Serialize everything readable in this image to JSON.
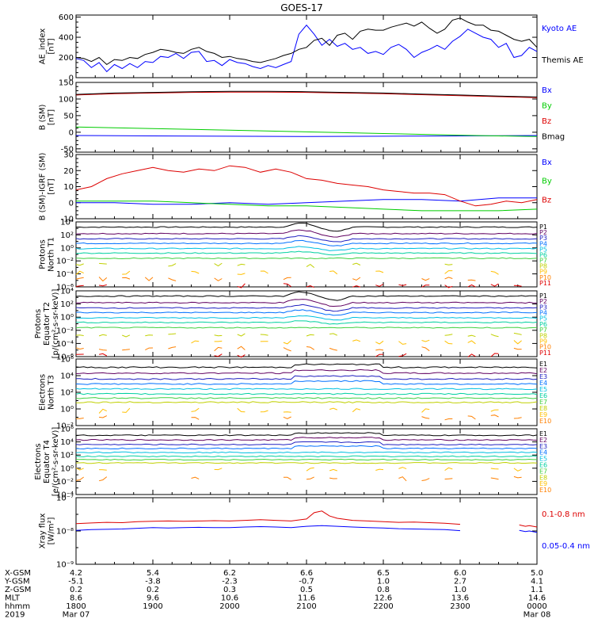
{
  "figure_title": "GOES-17",
  "colors": {
    "black": "#000000",
    "blue": "#0000ff",
    "green": "#00cc00",
    "red": "#dd0000",
    "darkred": "#8b0000",
    "ladder": [
      "#000000",
      "#600060",
      "#2020c0",
      "#0070ff",
      "#00c0e0",
      "#00d0a0",
      "#40d040",
      "#c0d000",
      "#ffc000",
      "#ff8000",
      "#e00000"
    ]
  },
  "chart_data": [
    {
      "id": "ae",
      "type": "line",
      "ylabel": "AE_index\n[nT]",
      "ylim": [
        0,
        620
      ],
      "yscale": "linear",
      "yticks": [
        0,
        200,
        400,
        600
      ],
      "ytick_labels": [
        "0",
        "200",
        "400",
        "600"
      ],
      "legend": [
        "Kyoto AE",
        "Themis AE"
      ],
      "legend_colors": [
        "#0000ff",
        "#000000"
      ],
      "series": [
        {
          "name": "Kyoto AE",
          "color": "#0000ff",
          "x": [
            0,
            0.1,
            0.2,
            0.3,
            0.4,
            0.5,
            0.6,
            0.7,
            0.8,
            0.9,
            1.0,
            1.1,
            1.2,
            1.3,
            1.4,
            1.5,
            1.6,
            1.7,
            1.8,
            1.9,
            2.0,
            2.1,
            2.2,
            2.3,
            2.4,
            2.5,
            2.6,
            2.7,
            2.8,
            2.9,
            3.0,
            3.1,
            3.2,
            3.3,
            3.4,
            3.5,
            3.6,
            3.7,
            3.8,
            3.9,
            4.0,
            4.1,
            4.2,
            4.3,
            4.4,
            4.5,
            4.6,
            4.7,
            4.8,
            4.9,
            5.0,
            5.1,
            5.2,
            5.3,
            5.4,
            5.5,
            5.6,
            5.7,
            5.8,
            5.9,
            6.0
          ],
          "y": [
            190,
            170,
            100,
            150,
            60,
            130,
            90,
            140,
            100,
            160,
            150,
            210,
            200,
            240,
            190,
            250,
            260,
            160,
            170,
            120,
            180,
            150,
            140,
            110,
            90,
            120,
            100,
            130,
            160,
            430,
            520,
            430,
            320,
            380,
            310,
            340,
            280,
            300,
            240,
            260,
            230,
            300,
            330,
            280,
            200,
            250,
            280,
            320,
            280,
            360,
            410,
            480,
            440,
            400,
            380,
            300,
            340,
            200,
            220,
            300,
            260
          ]
        },
        {
          "name": "Themis AE",
          "color": "#000000",
          "x": [
            0,
            0.1,
            0.2,
            0.3,
            0.4,
            0.5,
            0.6,
            0.7,
            0.8,
            0.9,
            1.0,
            1.1,
            1.2,
            1.3,
            1.4,
            1.5,
            1.6,
            1.7,
            1.8,
            1.9,
            2.0,
            2.1,
            2.2,
            2.3,
            2.4,
            2.5,
            2.6,
            2.7,
            2.8,
            2.9,
            3.0,
            3.1,
            3.2,
            3.3,
            3.4,
            3.5,
            3.6,
            3.7,
            3.8,
            3.9,
            4.0,
            4.1,
            4.2,
            4.3,
            4.4,
            4.5,
            4.6,
            4.7,
            4.8,
            4.9,
            5.0,
            5.1,
            5.2,
            5.3,
            5.4,
            5.5,
            5.6,
            5.7,
            5.8,
            5.9,
            6.0
          ],
          "y": [
            200,
            190,
            160,
            200,
            130,
            180,
            170,
            200,
            190,
            230,
            250,
            280,
            270,
            250,
            240,
            280,
            300,
            260,
            240,
            200,
            210,
            190,
            180,
            160,
            150,
            170,
            190,
            220,
            240,
            280,
            300,
            370,
            390,
            320,
            420,
            440,
            380,
            460,
            480,
            470,
            470,
            500,
            520,
            540,
            510,
            550,
            490,
            440,
            480,
            570,
            590,
            550,
            520,
            520,
            470,
            460,
            420,
            380,
            360,
            380,
            300
          ]
        }
      ]
    },
    {
      "id": "bsm",
      "type": "line",
      "ylabel": "B (SM)\n[nT]",
      "ylim": [
        -60,
        150
      ],
      "yscale": "linear",
      "yticks": [
        -50,
        0,
        50,
        100,
        150
      ],
      "ytick_labels": [
        "-50",
        "0",
        "50",
        "100",
        "150"
      ],
      "legend": [
        "Bx",
        "By",
        "Bz",
        "Bmag"
      ],
      "legend_colors": [
        "#0000ff",
        "#00cc00",
        "#dd0000",
        "#000000"
      ],
      "series": [
        {
          "name": "Bx",
          "color": "#0000ff",
          "x": [
            0,
            1,
            2,
            3,
            4,
            5,
            6
          ],
          "y": [
            -10,
            -11,
            -12,
            -13,
            -12,
            -11,
            -10
          ]
        },
        {
          "name": "By",
          "color": "#00cc00",
          "x": [
            0,
            1,
            2,
            3,
            4,
            5,
            6
          ],
          "y": [
            16,
            11,
            6,
            1,
            -4,
            -9,
            -13
          ]
        },
        {
          "name": "Bz",
          "color": "#dd0000",
          "x": [
            0,
            0.5,
            1,
            1.5,
            2,
            2.5,
            3,
            3.5,
            4,
            4.5,
            5,
            5.5,
            6
          ],
          "y": [
            112,
            116,
            118,
            120,
            121,
            121,
            120,
            118,
            116,
            113,
            110,
            107,
            104
          ]
        },
        {
          "name": "Bmag",
          "color": "#000000",
          "x": [
            0,
            0.5,
            1,
            1.5,
            2,
            2.5,
            3,
            3.5,
            4,
            4.5,
            5,
            5.5,
            6
          ],
          "y": [
            114,
            118,
            120,
            122,
            123,
            123,
            122,
            120,
            118,
            115,
            112,
            109,
            106
          ]
        }
      ]
    },
    {
      "id": "bigrf",
      "type": "line",
      "ylabel": "B (SM)-IGRF (SM)\n[nT]",
      "ylim": [
        -10,
        30
      ],
      "yscale": "linear",
      "yticks": [
        -10,
        0,
        10,
        20,
        30
      ],
      "ytick_labels": [
        "-10",
        "0",
        "10",
        "20",
        "30"
      ],
      "legend": [
        "Bx",
        "By",
        "Bz"
      ],
      "legend_colors": [
        "#0000ff",
        "#00cc00",
        "#dd0000"
      ],
      "series": [
        {
          "name": "Bx",
          "color": "#0000ff",
          "x": [
            0,
            0.5,
            1,
            1.5,
            2,
            2.5,
            3,
            3.5,
            4,
            4.5,
            5,
            5.5,
            6
          ],
          "y": [
            0,
            0,
            -1,
            -1,
            0,
            -1,
            0,
            1,
            2,
            2,
            1,
            3,
            3
          ]
        },
        {
          "name": "By",
          "color": "#00cc00",
          "x": [
            0,
            0.5,
            1,
            1.5,
            2,
            2.5,
            3,
            3.5,
            4,
            4.5,
            5,
            5.5,
            6
          ],
          "y": [
            1,
            1,
            1,
            0,
            -1,
            -2,
            -2,
            -3,
            -4,
            -5,
            -5,
            -5,
            -4
          ]
        },
        {
          "name": "Bz",
          "color": "#dd0000",
          "x": [
            0,
            0.2,
            0.4,
            0.6,
            0.8,
            1.0,
            1.2,
            1.4,
            1.6,
            1.8,
            2.0,
            2.2,
            2.4,
            2.6,
            2.8,
            3.0,
            3.2,
            3.4,
            3.6,
            3.8,
            4.0,
            4.2,
            4.4,
            4.6,
            4.8,
            5.0,
            5.2,
            5.4,
            5.6,
            5.8,
            6.0
          ],
          "y": [
            8,
            10,
            15,
            18,
            20,
            22,
            20,
            19,
            21,
            20,
            23,
            22,
            19,
            21,
            19,
            15,
            14,
            12,
            11,
            10,
            8,
            7,
            6,
            6,
            5,
            1,
            -2,
            -1,
            1,
            0,
            2
          ]
        }
      ]
    },
    {
      "id": "p_north",
      "type": "line",
      "ylabel": "Protons\nNorth T1",
      "ylim": [
        -6,
        4
      ],
      "yscale": "log",
      "yticks": [
        -6,
        -4,
        -2,
        0,
        2,
        4
      ],
      "ytick_labels": [
        "10⁻⁶",
        "10⁻⁴",
        "10⁻²",
        "10⁰",
        "10²",
        "10⁴"
      ],
      "legend": [
        "P1",
        "P2",
        "P3",
        "P4",
        "P5",
        "P6",
        "P7",
        "P8",
        "P9",
        "P10",
        "P11"
      ],
      "levels": [
        3.2,
        2.2,
        1.4,
        0.7,
        -0.1,
        -0.8,
        -1.6,
        -2.7,
        -3.8,
        -4.8,
        -5.8
      ]
    },
    {
      "id": "p_equator",
      "type": "line",
      "ylabel": "Protons\nEquator T2\n[p/(cm²-s-sr-keV)]",
      "ylim": [
        -6,
        4
      ],
      "yscale": "log",
      "yticks": [
        -6,
        -4,
        -2,
        0,
        2,
        4
      ],
      "ytick_labels": [
        "10⁻⁶",
        "10⁻⁴",
        "10⁻²",
        "10⁰",
        "10²",
        "10⁴"
      ],
      "legend": [
        "P1",
        "P2",
        "P3",
        "P4",
        "P5",
        "P6",
        "P7",
        "P8",
        "P9",
        "P10",
        "P11"
      ],
      "levels": [
        3.2,
        2.2,
        1.4,
        0.7,
        -0.1,
        -0.8,
        -1.6,
        -2.7,
        -3.8,
        -4.8,
        -5.8
      ]
    },
    {
      "id": "e_north",
      "type": "line",
      "ylabel": "Electrons\nNorth T3",
      "ylim": [
        -2,
        6
      ],
      "yscale": "log",
      "yticks": [
        -2,
        0,
        2,
        4,
        6
      ],
      "ytick_labels": [
        "10⁻²",
        "10⁰",
        "10²",
        "10⁴",
        "10⁶"
      ],
      "legend": [
        "E1",
        "E2",
        "E3",
        "E4",
        "E5",
        "E6",
        "E7",
        "E8",
        "E9",
        "E10"
      ],
      "levels": [
        5.0,
        4.3,
        3.6,
        3.0,
        2.4,
        1.8,
        1.3,
        0.8,
        -0.2,
        -1.0
      ]
    },
    {
      "id": "e_equator",
      "type": "line",
      "ylabel": "Electrons\nEquator T4\n[e/(cm²-s-sr-keV)]",
      "ylim": [
        -4,
        6
      ],
      "yscale": "log",
      "yticks": [
        -4,
        -2,
        0,
        2,
        4,
        6
      ],
      "ytick_labels": [
        "10⁻⁴",
        "10⁻²",
        "10⁰",
        "10²",
        "10⁴",
        "10⁶"
      ],
      "legend": [
        "E1",
        "E2",
        "E3",
        "E4",
        "E5",
        "E6",
        "E7",
        "E8",
        "E9",
        "E10"
      ],
      "levels": [
        5.0,
        4.3,
        3.6,
        3.0,
        2.4,
        1.8,
        1.3,
        0.8,
        -0.2,
        -1.6
      ]
    },
    {
      "id": "xray",
      "type": "line",
      "ylabel": "Xray flux\n[W/m²]",
      "ylim": [
        -9,
        -7
      ],
      "yscale": "log",
      "yticks": [
        -9,
        -8,
        -7
      ],
      "ytick_labels": [
        "10⁻⁹",
        "10⁻⁸",
        "10⁻⁷"
      ],
      "legend": [
        "0.1-0.8 nm",
        "0.05-0.4 nm"
      ],
      "legend_colors": [
        "#dd0000",
        "#0000ff"
      ],
      "series": [
        {
          "name": "0.1-0.8 nm",
          "color": "#dd0000",
          "x": [
            0,
            0.2,
            0.4,
            0.6,
            0.8,
            1.0,
            1.2,
            1.4,
            1.6,
            1.8,
            2.0,
            2.2,
            2.4,
            2.6,
            2.8,
            3.0,
            3.1,
            3.2,
            3.3,
            3.4,
            3.6,
            3.8,
            4.0,
            4.2,
            4.4,
            4.6,
            4.8,
            5.0
          ],
          "y": [
            -7.78,
            -7.76,
            -7.74,
            -7.75,
            -7.72,
            -7.71,
            -7.7,
            -7.71,
            -7.7,
            -7.69,
            -7.7,
            -7.68,
            -7.66,
            -7.68,
            -7.7,
            -7.64,
            -7.45,
            -7.4,
            -7.55,
            -7.62,
            -7.68,
            -7.7,
            -7.72,
            -7.74,
            -7.73,
            -7.75,
            -7.77,
            -7.8
          ]
        },
        {
          "name": "0.05-0.4 nm",
          "color": "#0000ff",
          "x": [
            0,
            0.2,
            0.4,
            0.6,
            0.8,
            1.0,
            1.2,
            1.4,
            1.6,
            1.8,
            2.0,
            2.2,
            2.4,
            2.6,
            2.8,
            3.0,
            3.2,
            3.4,
            3.6,
            3.8,
            4.0,
            4.2,
            4.4,
            4.6,
            4.8,
            5.0
          ],
          "y": [
            -7.98,
            -7.96,
            -7.95,
            -7.94,
            -7.92,
            -7.9,
            -7.91,
            -7.9,
            -7.89,
            -7.9,
            -7.9,
            -7.88,
            -7.87,
            -7.88,
            -7.9,
            -7.86,
            -7.84,
            -7.86,
            -7.88,
            -7.9,
            -7.91,
            -7.93,
            -7.94,
            -7.95,
            -7.96,
            -7.99
          ]
        },
        {
          "name": "0.1-0.8 nm b",
          "color": "#dd0000",
          "x": [
            5.77,
            5.85,
            5.9,
            6.0
          ],
          "y": [
            -7.82,
            -7.86,
            -7.84,
            -7.88
          ]
        },
        {
          "name": "0.05-0.4 nm b",
          "color": "#0000ff",
          "x": [
            5.77,
            5.85,
            5.9,
            6.0
          ],
          "y": [
            -7.98,
            -8.02,
            -8.0,
            -8.04
          ]
        }
      ]
    }
  ],
  "x_axis": {
    "xlim": [
      0,
      6
    ],
    "tick_hours": [
      0,
      1,
      2,
      3,
      4,
      5,
      6
    ],
    "row_labels": [
      "X-GSM",
      "Y-GSM",
      "Z-GSM",
      "MLT",
      "hhmm",
      "2019"
    ],
    "rows": [
      [
        "4.2",
        "5.4",
        "6.2",
        "6.6",
        "6.5",
        "6.0",
        "5.0"
      ],
      [
        "-5.1",
        "-3.8",
        "-2.3",
        "-0.7",
        "1.0",
        "2.7",
        "4.1"
      ],
      [
        "0.2",
        "0.2",
        "0.3",
        "0.5",
        "0.8",
        "1.0",
        "1.1"
      ],
      [
        "8.6",
        "9.6",
        "10.6",
        "11.6",
        "12.6",
        "13.6",
        "14.6"
      ],
      [
        "1800",
        "1900",
        "2000",
        "2100",
        "2200",
        "2300",
        "0000"
      ],
      [
        "Mar 07",
        "",
        "",
        "",
        "",
        "",
        "Mar 08"
      ]
    ]
  }
}
